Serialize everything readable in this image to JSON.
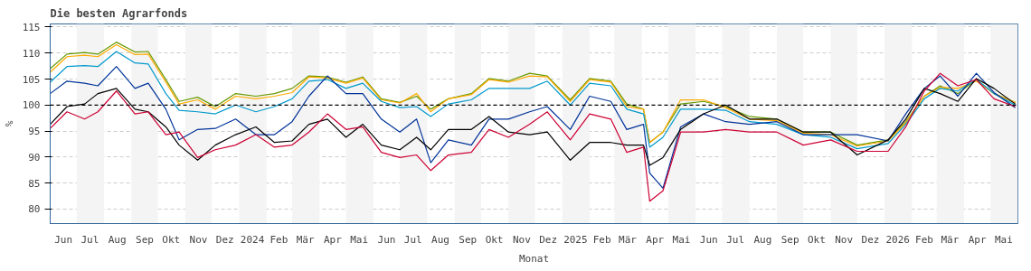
{
  "chart_data": {
    "type": "line",
    "title": "Die besten Agrarfonds",
    "xlabel": "Monat",
    "ylabel": "%",
    "x": [
      "2023-06-01",
      "2023-06-20",
      "2023-07-10",
      "2023-07-25",
      "2023-08-15",
      "2023-09-05",
      "2023-09-20",
      "2023-10-10",
      "2023-10-25",
      "2023-11-15",
      "2023-12-05",
      "2023-12-28",
      "2024-01-20",
      "2024-02-10",
      "2024-03-01",
      "2024-03-20",
      "2024-04-10",
      "2024-05-01",
      "2024-05-20",
      "2024-06-10",
      "2024-07-01",
      "2024-07-20",
      "2024-08-05",
      "2024-08-25",
      "2024-09-20",
      "2024-10-10",
      "2024-11-01",
      "2024-11-25",
      "2024-12-15",
      "2025-01-10",
      "2025-02-01",
      "2025-02-25",
      "2025-03-15",
      "2025-04-03",
      "2025-04-10",
      "2025-04-25",
      "2025-05-15",
      "2025-06-10",
      "2025-07-05",
      "2025-08-01",
      "2025-09-01",
      "2025-10-01",
      "2025-11-01",
      "2025-12-01",
      "2026-01-05",
      "2026-01-25",
      "2026-02-15",
      "2026-03-05",
      "2026-03-25",
      "2026-04-15",
      "2026-05-05",
      "2026-05-29"
    ],
    "series": [
      {
        "color": "#669900",
        "values": [
          107.0,
          109.8,
          110.1,
          109.8,
          112.1,
          110.2,
          110.3,
          104.9,
          100.7,
          101.5,
          99.7,
          102.2,
          101.7,
          102.2,
          103.2,
          105.6,
          105.4,
          104.4,
          105.4,
          101.2,
          100.5,
          101.7,
          99.2,
          101.2,
          102.2,
          105.1,
          104.6,
          106.1,
          105.6,
          101.0,
          105.1,
          104.6,
          100.2,
          99.2,
          92.8,
          94.8,
          100.2,
          100.7,
          99.7,
          97.8,
          97.3,
          94.8,
          94.8,
          92.3,
          93.3,
          96.8,
          101.7,
          103.7,
          102.2,
          104.9,
          102.2,
          100.5
        ]
      },
      {
        "color": "#ffaa00",
        "values": [
          106.3,
          109.3,
          109.6,
          109.3,
          111.6,
          109.7,
          109.8,
          104.4,
          100.2,
          101.0,
          99.2,
          101.7,
          101.2,
          101.7,
          102.4,
          105.4,
          105.2,
          104.2,
          105.2,
          101.0,
          100.4,
          102.2,
          98.7,
          101.2,
          102.0,
          104.9,
          104.4,
          105.6,
          105.4,
          100.7,
          104.9,
          104.4,
          99.7,
          99.2,
          92.8,
          94.8,
          101.0,
          101.0,
          99.5,
          97.3,
          97.0,
          94.6,
          94.3,
          92.1,
          93.1,
          96.6,
          101.7,
          103.4,
          103.2,
          104.6,
          102.2,
          100.5
        ]
      },
      {
        "color": "#0099cc",
        "values": [
          104.4,
          107.4,
          107.6,
          107.4,
          110.3,
          108.1,
          107.9,
          102.2,
          99.0,
          98.7,
          98.3,
          100.0,
          98.7,
          99.7,
          101.2,
          104.6,
          104.9,
          103.2,
          104.2,
          100.7,
          99.5,
          99.7,
          97.8,
          100.2,
          101.0,
          103.2,
          103.2,
          103.2,
          104.6,
          100.0,
          104.2,
          103.7,
          99.2,
          98.3,
          91.9,
          93.8,
          99.2,
          99.2,
          99.0,
          96.8,
          96.3,
          94.3,
          93.8,
          91.6,
          92.6,
          96.3,
          101.2,
          103.2,
          102.7,
          104.9,
          102.2,
          100.0
        ]
      },
      {
        "color": "#003399",
        "values": [
          102.2,
          104.6,
          104.2,
          103.7,
          107.4,
          103.2,
          104.2,
          99.2,
          93.3,
          95.3,
          95.5,
          97.3,
          94.3,
          94.3,
          96.8,
          101.7,
          105.6,
          102.2,
          102.2,
          97.3,
          94.8,
          97.3,
          88.9,
          93.3,
          92.3,
          97.3,
          97.3,
          98.7,
          99.7,
          95.3,
          101.7,
          100.7,
          95.3,
          96.3,
          86.9,
          84.0,
          95.8,
          98.3,
          96.8,
          96.3,
          96.8,
          94.3,
          94.3,
          94.3,
          93.1,
          98.3,
          103.2,
          105.6,
          101.7,
          106.1,
          102.4,
          99.5
        ]
      },
      {
        "color": "#000000",
        "values": [
          96.3,
          99.7,
          100.2,
          102.2,
          103.2,
          99.2,
          98.7,
          95.8,
          92.3,
          89.4,
          92.3,
          94.3,
          95.8,
          92.8,
          93.1,
          96.3,
          97.3,
          93.8,
          96.3,
          92.3,
          91.4,
          93.8,
          91.4,
          95.3,
          95.3,
          97.8,
          94.8,
          94.3,
          94.8,
          89.4,
          92.8,
          92.8,
          92.3,
          92.3,
          88.4,
          89.9,
          95.3,
          98.3,
          100.0,
          97.3,
          97.3,
          94.8,
          94.8,
          90.4,
          93.3,
          97.3,
          103.2,
          102.2,
          100.7,
          105.1,
          103.2,
          100.2
        ]
      },
      {
        "color": "#cc0033",
        "values": [
          95.5,
          98.7,
          97.3,
          98.7,
          102.7,
          98.3,
          98.7,
          94.3,
          94.8,
          89.9,
          91.4,
          92.3,
          94.3,
          91.9,
          92.3,
          94.8,
          98.3,
          95.3,
          95.8,
          90.9,
          89.9,
          90.4,
          87.4,
          90.4,
          90.9,
          95.3,
          93.8,
          96.3,
          98.7,
          93.3,
          98.3,
          97.3,
          90.9,
          91.9,
          81.5,
          83.5,
          94.8,
          94.8,
          95.3,
          94.8,
          94.8,
          92.3,
          93.3,
          91.1,
          91.1,
          95.8,
          102.7,
          106.1,
          103.7,
          104.9,
          101.2,
          99.7
        ]
      }
    ],
    "xlim": [
      "2023-06-01",
      "2026-06-01"
    ],
    "xticks": [
      {
        "value": "2023-06-16",
        "label": "Jun"
      },
      {
        "value": "2023-07-16",
        "label": "Jul"
      },
      {
        "value": "2023-08-16",
        "label": "Aug"
      },
      {
        "value": "2023-09-16",
        "label": "Sep"
      },
      {
        "value": "2023-10-16",
        "label": "Okt"
      },
      {
        "value": "2023-11-16",
        "label": "Nov"
      },
      {
        "value": "2023-12-16",
        "label": "Dez"
      },
      {
        "value": "2024-01-16",
        "label": "2024"
      },
      {
        "value": "2024-02-15",
        "label": "Feb"
      },
      {
        "value": "2024-03-16",
        "label": "Mär"
      },
      {
        "value": "2024-04-16",
        "label": "Apr"
      },
      {
        "value": "2024-05-16",
        "label": "Mai"
      },
      {
        "value": "2024-06-16",
        "label": "Jun"
      },
      {
        "value": "2024-07-16",
        "label": "Jul"
      },
      {
        "value": "2024-08-16",
        "label": "Aug"
      },
      {
        "value": "2024-09-16",
        "label": "Sep"
      },
      {
        "value": "2024-10-16",
        "label": "Okt"
      },
      {
        "value": "2024-11-16",
        "label": "Nov"
      },
      {
        "value": "2024-12-16",
        "label": "Dez"
      },
      {
        "value": "2025-01-16",
        "label": "2025"
      },
      {
        "value": "2025-02-15",
        "label": "Feb"
      },
      {
        "value": "2025-03-16",
        "label": "Mär"
      },
      {
        "value": "2025-04-16",
        "label": "Apr"
      },
      {
        "value": "2025-05-16",
        "label": "Mai"
      },
      {
        "value": "2025-06-16",
        "label": "Jun"
      },
      {
        "value": "2025-07-16",
        "label": "Jul"
      },
      {
        "value": "2025-08-16",
        "label": "Aug"
      },
      {
        "value": "2025-09-16",
        "label": "Sep"
      },
      {
        "value": "2025-10-16",
        "label": "Okt"
      },
      {
        "value": "2025-11-16",
        "label": "Nov"
      },
      {
        "value": "2025-12-16",
        "label": "Dez"
      },
      {
        "value": "2026-01-16",
        "label": "2026"
      },
      {
        "value": "2026-02-15",
        "label": "Feb"
      },
      {
        "value": "2026-03-16",
        "label": "Mär"
      },
      {
        "value": "2026-04-16",
        "label": "Apr"
      },
      {
        "value": "2026-05-16",
        "label": "Mai"
      }
    ],
    "ylim": [
      77.2,
      115.6
    ],
    "yticks": [
      80,
      85,
      90,
      95,
      100,
      105,
      110,
      115
    ],
    "grid": "y",
    "ref_lines": [
      {
        "axis": "y",
        "value": 100,
        "color": "#000000",
        "line_style": "dashed"
      }
    ],
    "bands": [
      {
        "axis": "x",
        "from": "2023-07-01",
        "to": "2023-08-01",
        "color": "#f4f4f4"
      },
      {
        "axis": "x",
        "from": "2023-09-01",
        "to": "2023-10-01",
        "color": "#f4f4f4"
      },
      {
        "axis": "x",
        "from": "2023-11-01",
        "to": "2023-12-01",
        "color": "#f4f4f4"
      },
      {
        "axis": "x",
        "from": "2024-01-01",
        "to": "2024-02-01",
        "color": "#f4f4f4"
      },
      {
        "axis": "x",
        "from": "2024-03-01",
        "to": "2024-04-01",
        "color": "#f4f4f4"
      },
      {
        "axis": "x",
        "from": "2024-05-01",
        "to": "2024-06-01",
        "color": "#f4f4f4"
      },
      {
        "axis": "x",
        "from": "2024-07-01",
        "to": "2024-08-01",
        "color": "#f4f4f4"
      },
      {
        "axis": "x",
        "from": "2024-09-01",
        "to": "2024-10-01",
        "color": "#f4f4f4"
      },
      {
        "axis": "x",
        "from": "2024-11-01",
        "to": "2024-12-01",
        "color": "#f4f4f4"
      },
      {
        "axis": "x",
        "from": "2025-01-01",
        "to": "2025-02-01",
        "color": "#f4f4f4"
      },
      {
        "axis": "x",
        "from": "2025-03-01",
        "to": "2025-04-01",
        "color": "#f4f4f4"
      },
      {
        "axis": "x",
        "from": "2025-05-01",
        "to": "2025-06-01",
        "color": "#f4f4f4"
      },
      {
        "axis": "x",
        "from": "2025-07-01",
        "to": "2025-08-01",
        "color": "#f4f4f4"
      },
      {
        "axis": "x",
        "from": "2025-09-01",
        "to": "2025-10-01",
        "color": "#f4f4f4"
      },
      {
        "axis": "x",
        "from": "2025-11-01",
        "to": "2025-12-01",
        "color": "#f4f4f4"
      },
      {
        "axis": "x",
        "from": "2026-01-01",
        "to": "2026-02-01",
        "color": "#f4f4f4"
      },
      {
        "axis": "x",
        "from": "2026-03-01",
        "to": "2026-04-01",
        "color": "#f4f4f4"
      },
      {
        "axis": "x",
        "from": "2026-05-01",
        "to": "2026-06-01",
        "color": "#f4f4f4"
      }
    ]
  }
}
